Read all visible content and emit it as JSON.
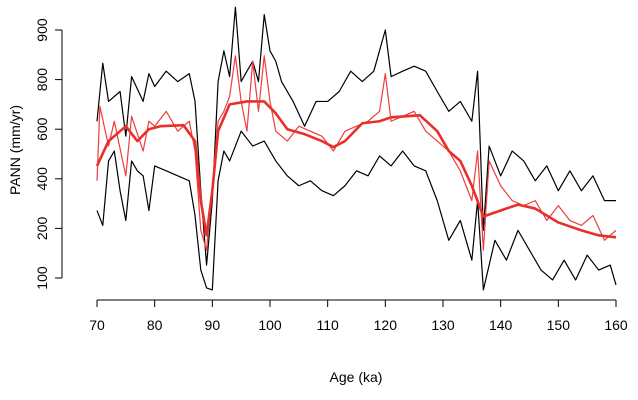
{
  "chart_data": {
    "type": "line",
    "x_label": "Age (ka)",
    "y_label": "PANN (mm/yr)",
    "xlim": [
      70,
      160
    ],
    "xticks": [
      70,
      80,
      90,
      100,
      110,
      120,
      130,
      140,
      150,
      160
    ],
    "ylim": [
      66,
      952
    ],
    "yticks": [
      100,
      200,
      400,
      600,
      800,
      900
    ],
    "series": [
      {
        "color": "#000000",
        "line_width": 1.2,
        "x": [
          70,
          71,
          72,
          74,
          75,
          76,
          78,
          79,
          80,
          82,
          84,
          86,
          87,
          88,
          89,
          90,
          91,
          92,
          93,
          94,
          95,
          96,
          97,
          98,
          99,
          100,
          101,
          102,
          104,
          106,
          108,
          110,
          112,
          114,
          116,
          118,
          120,
          121,
          123,
          125,
          127,
          129,
          131,
          133,
          135,
          136,
          137,
          138,
          140,
          142,
          144,
          146,
          148,
          150,
          152,
          154,
          156,
          158,
          160
        ],
        "values": [
          632,
          833,
          712,
          752,
          572,
          806,
          712,
          812,
          772,
          817,
          792,
          812,
          712,
          352,
          126,
          312,
          792,
          858,
          806,
          946,
          792,
          817,
          837,
          792,
          931,
          858,
          837,
          792,
          712,
          612,
          712,
          712,
          752,
          817,
          792,
          817,
          900,
          806,
          817,
          827,
          817,
          752,
          672,
          712,
          632,
          817,
          196,
          532,
          412,
          512,
          472,
          392,
          452,
          352,
          432,
          352,
          412,
          312,
          312
        ]
      },
      {
        "color": "#000000",
        "line_width": 1.2,
        "x": [
          70,
          71,
          72,
          73,
          74,
          75,
          76,
          77,
          78,
          79,
          80,
          82,
          84,
          86,
          87,
          88,
          89,
          90,
          91,
          92,
          93,
          95,
          97,
          99,
          101,
          103,
          105,
          107,
          109,
          111,
          113,
          115,
          117,
          119,
          121,
          123,
          125,
          127,
          129,
          131,
          133,
          135,
          136,
          137,
          139,
          141,
          143,
          145,
          147,
          149,
          151,
          153,
          155,
          157,
          159,
          160
        ],
        "values": [
          272,
          212,
          472,
          512,
          352,
          232,
          472,
          432,
          412,
          272,
          452,
          432,
          412,
          392,
          252,
          116,
          80,
          76,
          392,
          512,
          472,
          592,
          532,
          552,
          472,
          412,
          372,
          392,
          352,
          332,
          372,
          432,
          412,
          492,
          452,
          512,
          452,
          432,
          312,
          176,
          232,
          136,
          312,
          76,
          176,
          136,
          196,
          156,
          116,
          96,
          136,
          96,
          146,
          116,
          126,
          86
        ]
      },
      {
        "color": "#f03c3c",
        "line_width": 1.2,
        "x": [
          70,
          70.5,
          72,
          73,
          75,
          76,
          78,
          79,
          80,
          82,
          84,
          86,
          87,
          88,
          89,
          90,
          91,
          92,
          93,
          94,
          95,
          96,
          97,
          98,
          99,
          100,
          101,
          103,
          105,
          107,
          109,
          111,
          113,
          115,
          117,
          119,
          120,
          121,
          123,
          125,
          127,
          129,
          131,
          133,
          135,
          136,
          137,
          138,
          140,
          142,
          144,
          146,
          148,
          150,
          152,
          154,
          156,
          158,
          160
        ],
        "values": [
          392,
          692,
          532,
          632,
          412,
          652,
          512,
          632,
          612,
          672,
          592,
          632,
          512,
          196,
          156,
          372,
          632,
          672,
          732,
          848,
          712,
          592,
          837,
          672,
          848,
          712,
          592,
          552,
          612,
          592,
          572,
          512,
          592,
          612,
          632,
          672,
          812,
          632,
          652,
          672,
          592,
          552,
          512,
          432,
          312,
          512,
          156,
          472,
          372,
          312,
          292,
          312,
          232,
          292,
          232,
          212,
          252,
          176,
          196
        ]
      },
      {
        "color": "#e8302a",
        "line_width": 2.6,
        "x": [
          70,
          72,
          74,
          75,
          77,
          79,
          81,
          85,
          87,
          88,
          89,
          90,
          91,
          93,
          96,
          99,
          101,
          103,
          106,
          109,
          111,
          113,
          116,
          119,
          121,
          126,
          129,
          131,
          133,
          135,
          137,
          140,
          143,
          146,
          150,
          154,
          157,
          160
        ],
        "values": [
          452,
          552,
          592,
          612,
          552,
          600,
          612,
          616,
          552,
          312,
          186,
          352,
          592,
          700,
          712,
          712,
          664,
          600,
          580,
          552,
          528,
          552,
          624,
          632,
          648,
          656,
          592,
          512,
          472,
          372,
          248,
          272,
          296,
          280,
          224,
          196,
          186,
          182
        ]
      }
    ]
  }
}
